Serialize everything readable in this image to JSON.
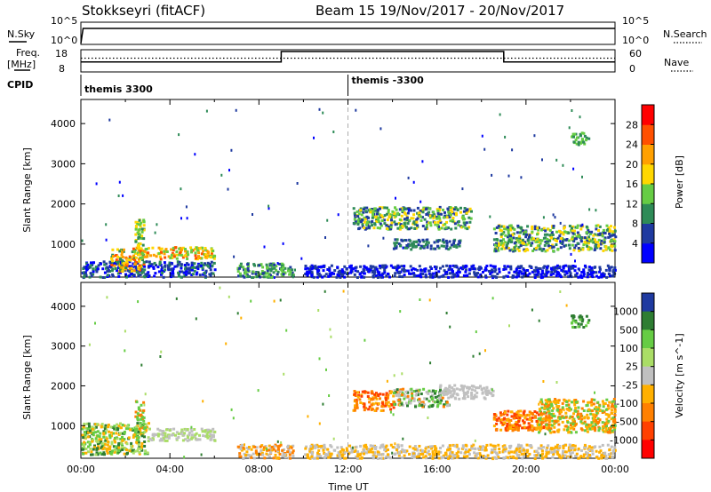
{
  "header": {
    "title_left": "Stokkseyri (fitACF)",
    "title_right": "Beam 15  19/Nov/2017 - 20/Nov/2017"
  },
  "status_panels": {
    "nsky_label": "N.Sky",
    "nsky_tick_high": "10^5",
    "nsky_tick_low": "10^0",
    "nsearch_label": "N.Search",
    "nsearch_tick_high": "10^5",
    "nsearch_tick_low": "10^0",
    "freq_label_line1": "Freq.",
    "freq_label_line2": "[MHz]",
    "freq_tick_high": "18",
    "freq_tick_low": "8",
    "nave_label": "Nave",
    "nave_tick_high": "60",
    "nave_tick_low": "0",
    "cpid_label": "CPID",
    "cpid_program_1": "themis 3300",
    "cpid_program_2": "themis -3300",
    "nsky_step": [
      [
        0,
        0.05
      ],
      [
        0.1,
        0.72
      ],
      [
        24,
        0.72
      ]
    ],
    "freq_step": [
      [
        0,
        0.45
      ],
      [
        9,
        0.45
      ],
      [
        9,
        0.92
      ],
      [
        19,
        0.92
      ],
      [
        19,
        0.45
      ],
      [
        24,
        0.45
      ]
    ],
    "nave_dotted_level": 0.62,
    "cpid_switch_hour": 12
  },
  "chart_data": [
    {
      "type": "heatmap",
      "name": "power",
      "ylabel": "Slant Range [km]",
      "xlim": [
        0,
        24
      ],
      "ylim": [
        180,
        4600
      ],
      "yticks": [
        1000,
        2000,
        3000,
        4000
      ],
      "colorbar_label": "Power [dB]",
      "colorbar_ticks": [
        "4",
        "8",
        "12",
        "16",
        "20",
        "24",
        "28"
      ],
      "colorbar_colors": [
        "#0000ff",
        "#1f3aa0",
        "#2e8b57",
        "#66cc44",
        "#ffd700",
        "#ffa000",
        "#ff5000",
        "#ff0000"
      ],
      "scatter_regions": [
        {
          "h0": 0.0,
          "h1": 6.0,
          "r0": 200,
          "r1": 600,
          "colors": [
            "#0000ff",
            "#1f3aa0",
            "#2e8b57"
          ]
        },
        {
          "h0": 1.3,
          "h1": 2.8,
          "r0": 350,
          "r1": 900,
          "colors": [
            "#ffa000",
            "#ff5000",
            "#ffd700",
            "#2e8b57"
          ]
        },
        {
          "h0": 2.3,
          "h1": 6.0,
          "r0": 650,
          "r1": 950,
          "colors": [
            "#ffa000",
            "#ff5000",
            "#ffd700",
            "#66cc44"
          ]
        },
        {
          "h0": 2.4,
          "h1": 2.8,
          "r0": 900,
          "r1": 1650,
          "colors": [
            "#66cc44",
            "#2e8b57",
            "#ffd700"
          ]
        },
        {
          "h0": 7.0,
          "h1": 9.5,
          "r0": 200,
          "r1": 550,
          "colors": [
            "#66cc44",
            "#2e8b57",
            "#1f3aa0"
          ]
        },
        {
          "h0": 12.2,
          "h1": 17.5,
          "r0": 1400,
          "r1": 1950,
          "colors": [
            "#1f3aa0",
            "#2e8b57",
            "#66cc44",
            "#ffd700"
          ]
        },
        {
          "h0": 14.0,
          "h1": 17.0,
          "r0": 900,
          "r1": 1150,
          "colors": [
            "#1f3aa0",
            "#2e8b57"
          ]
        },
        {
          "h0": 18.5,
          "h1": 24.0,
          "r0": 850,
          "r1": 1500,
          "colors": [
            "#1f3aa0",
            "#2e8b57",
            "#66cc44",
            "#ffd700"
          ]
        },
        {
          "h0": 10.0,
          "h1": 24.0,
          "r0": 200,
          "r1": 500,
          "colors": [
            "#0000ff",
            "#1f3aa0"
          ]
        },
        {
          "h0": 22.0,
          "h1": 22.8,
          "r0": 3500,
          "r1": 3800,
          "colors": [
            "#66cc44",
            "#2e8b57"
          ]
        }
      ]
    },
    {
      "type": "heatmap",
      "name": "velocity",
      "xlabel": "Time UT",
      "ylabel": "Slant Range [km]",
      "xlim": [
        0,
        24
      ],
      "ylim": [
        180,
        4600
      ],
      "xticks": [
        "00:00",
        "04:00",
        "08:00",
        "12:00",
        "16:00",
        "20:00",
        "00:00"
      ],
      "yticks": [
        1000,
        2000,
        3000,
        4000
      ],
      "colorbar_label": "Velocity [m s^-1]",
      "colorbar_ticks": [
        "1000",
        "500",
        "100",
        "25",
        "-25",
        "-100",
        "-500",
        "-1000"
      ],
      "colorbar_colors": [
        "#1f3aa0",
        "#2e7d32",
        "#66cc44",
        "#aadd66",
        "#c0c0c0",
        "#ffb000",
        "#ff8000",
        "#ff4000",
        "#ff0000"
      ],
      "scatter_regions": [
        {
          "h0": 0.0,
          "h1": 3.0,
          "r0": 300,
          "r1": 1100,
          "colors": [
            "#66cc44",
            "#aadd66",
            "#2e7d32",
            "#ffb000"
          ]
        },
        {
          "h0": 3.0,
          "h1": 6.0,
          "r0": 650,
          "r1": 950,
          "colors": [
            "#c0c0c0",
            "#aadd66"
          ]
        },
        {
          "h0": 2.4,
          "h1": 2.8,
          "r0": 900,
          "r1": 1650,
          "colors": [
            "#66cc44",
            "#ff8000"
          ]
        },
        {
          "h0": 7.0,
          "h1": 9.5,
          "r0": 200,
          "r1": 550,
          "colors": [
            "#ffb000",
            "#ff8000",
            "#c0c0c0"
          ]
        },
        {
          "h0": 12.2,
          "h1": 14.0,
          "r0": 1400,
          "r1": 1900,
          "colors": [
            "#ff8000",
            "#ffb000",
            "#ff4000"
          ]
        },
        {
          "h0": 14.0,
          "h1": 16.5,
          "r0": 1500,
          "r1": 1950,
          "colors": [
            "#66cc44",
            "#2e7d32",
            "#ff8000",
            "#c0c0c0"
          ]
        },
        {
          "h0": 16.0,
          "h1": 18.5,
          "r0": 1700,
          "r1": 2050,
          "colors": [
            "#c0c0c0"
          ]
        },
        {
          "h0": 18.5,
          "h1": 21.0,
          "r0": 900,
          "r1": 1400,
          "colors": [
            "#ff8000",
            "#ff4000",
            "#ffb000"
          ]
        },
        {
          "h0": 20.5,
          "h1": 24.0,
          "r0": 850,
          "r1": 1700,
          "colors": [
            "#ffb000",
            "#66cc44",
            "#ff8000"
          ]
        },
        {
          "h0": 10.0,
          "h1": 24.0,
          "r0": 200,
          "r1": 550,
          "colors": [
            "#ffb000",
            "#c0c0c0"
          ]
        },
        {
          "h0": 22.0,
          "h1": 22.8,
          "r0": 3500,
          "r1": 3800,
          "colors": [
            "#66cc44",
            "#2e7d32"
          ]
        }
      ]
    }
  ]
}
